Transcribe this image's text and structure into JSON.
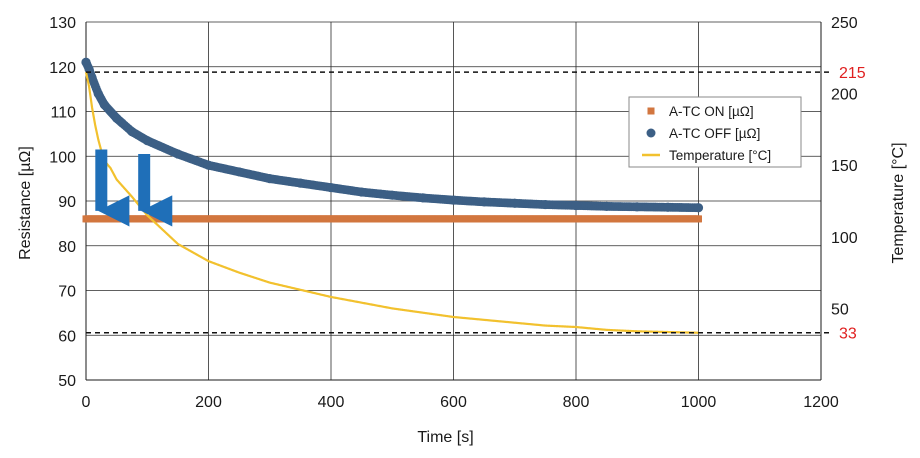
{
  "chart_data": {
    "type": "line",
    "title": "",
    "xlabel": "Time [s]",
    "ylabel": "Resistance [µΩ]",
    "y2label": "Temperature [°C]",
    "xlim": [
      0,
      1200
    ],
    "ylim": [
      50,
      130
    ],
    "y2lim": [
      0,
      250
    ],
    "x_ticks": [
      0,
      200,
      400,
      600,
      800,
      1000,
      1200
    ],
    "y_ticks": [
      50,
      60,
      70,
      80,
      90,
      100,
      110,
      120,
      130
    ],
    "y2_ticks": [
      50,
      100,
      150,
      200,
      250
    ],
    "grid": true,
    "legend_position": "upper-right",
    "reference_lines": [
      {
        "label": "215",
        "axis": "y2",
        "value": 215,
        "color": "#e02020"
      },
      {
        "label": "33",
        "axis": "y2",
        "value": 33,
        "color": "#e02020"
      }
    ],
    "annotations": [
      {
        "type": "arrow",
        "x": 25,
        "from_y": 101.5,
        "to_y": 86
      },
      {
        "type": "arrow",
        "x": 95,
        "from_y": 100.5,
        "to_y": 86
      }
    ],
    "series": [
      {
        "name": "A-TC ON [µΩ]",
        "axis": "y",
        "marker": "square",
        "color": "#d2763f",
        "x": [
          0,
          50,
          100,
          200,
          300,
          400,
          500,
          600,
          700,
          800,
          900,
          1000
        ],
        "y": [
          86,
          86,
          86,
          86,
          86,
          86,
          86,
          86,
          86,
          86,
          86,
          86
        ]
      },
      {
        "name": "A-TC OFF [µΩ]",
        "axis": "y",
        "marker": "circle",
        "color": "#3c5f85",
        "x": [
          0,
          5,
          10,
          20,
          30,
          50,
          75,
          100,
          150,
          200,
          250,
          300,
          350,
          400,
          450,
          500,
          550,
          600,
          650,
          700,
          750,
          800,
          850,
          900,
          950,
          1000
        ],
        "y": [
          121,
          119.5,
          117.5,
          114,
          111.5,
          108.5,
          105.5,
          103.5,
          100.5,
          98,
          96.5,
          95,
          94,
          93,
          92,
          91.3,
          90.7,
          90.2,
          89.8,
          89.5,
          89.2,
          89,
          88.8,
          88.7,
          88.6,
          88.5
        ]
      },
      {
        "name": "Temperature [°C]",
        "axis": "y2",
        "marker": "line",
        "color": "#f2c12e",
        "x": [
          0,
          5,
          10,
          15,
          20,
          25,
          30,
          40,
          50,
          75,
          100,
          150,
          200,
          250,
          300,
          350,
          400,
          450,
          500,
          550,
          600,
          650,
          700,
          750,
          800,
          850,
          900,
          950,
          1000
        ],
        "y": [
          215,
          205,
          190,
          178,
          168,
          160,
          153,
          148,
          140,
          128,
          115,
          95,
          83,
          75,
          68,
          63,
          58,
          54,
          50,
          47,
          44,
          42,
          40,
          38,
          37,
          35,
          34,
          33.5,
          33
        ]
      }
    ]
  }
}
